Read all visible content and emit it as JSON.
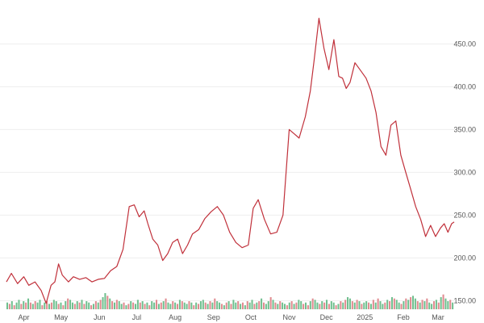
{
  "chart_data": {
    "type": "line",
    "title": "",
    "xlabel": "",
    "ylabel": "",
    "ylim": [
      140,
      490
    ],
    "y_ticks": [
      "150.00",
      "200.00",
      "250.00",
      "300.00",
      "350.00",
      "400.00",
      "450.00"
    ],
    "y_tick_values": [
      150,
      200,
      250,
      300,
      350,
      400,
      450
    ],
    "x_ticks": [
      "Apr",
      "May",
      "Jun",
      "Jul",
      "Aug",
      "Sep",
      "Oct",
      "Nov",
      "Dec",
      "2025",
      "Feb",
      "Mar"
    ],
    "x_tick_dates": [
      "2024-04-01",
      "2024-05-01",
      "2024-06-01",
      "2024-07-01",
      "2024-08-01",
      "2024-09-01",
      "2024-10-01",
      "2024-11-01",
      "2024-12-01",
      "2025-01-01",
      "2025-02-01",
      "2025-03-01"
    ],
    "x_range": [
      "2024-03-18",
      "2025-03-14"
    ],
    "grid": true,
    "legend": "none",
    "colors": {
      "line": "#c0303a",
      "volume_up": "#6fbf8e",
      "volume_down": "#e08a8f",
      "grid": "#eeeeee"
    },
    "series": [
      {
        "type": "line",
        "x": [
          "2024-03-18",
          "2024-03-22",
          "2024-03-27",
          "2024-04-01",
          "2024-04-05",
          "2024-04-10",
          "2024-04-15",
          "2024-04-19",
          "2024-04-23",
          "2024-04-26",
          "2024-04-29",
          "2024-05-02",
          "2024-05-07",
          "2024-05-11",
          "2024-05-16",
          "2024-05-21",
          "2024-05-26",
          "2024-05-31",
          "2024-06-05",
          "2024-06-10",
          "2024-06-15",
          "2024-06-20",
          "2024-06-25",
          "2024-06-29",
          "2024-07-03",
          "2024-07-07",
          "2024-07-10",
          "2024-07-14",
          "2024-07-18",
          "2024-07-22",
          "2024-07-26",
          "2024-07-30",
          "2024-08-03",
          "2024-08-07",
          "2024-08-11",
          "2024-08-15",
          "2024-08-20",
          "2024-08-25",
          "2024-08-30",
          "2024-09-04",
          "2024-09-09",
          "2024-09-14",
          "2024-09-19",
          "2024-09-24",
          "2024-09-29",
          "2024-10-03",
          "2024-10-07",
          "2024-10-12",
          "2024-10-17",
          "2024-10-22",
          "2024-10-27",
          "2024-11-01",
          "2024-11-05",
          "2024-11-09",
          "2024-11-14",
          "2024-11-18",
          "2024-11-21",
          "2024-11-25",
          "2024-11-29",
          "2024-12-03",
          "2024-12-07",
          "2024-12-11",
          "2024-12-14",
          "2024-12-17",
          "2024-12-20",
          "2024-12-24",
          "2024-12-28",
          "2025-01-02",
          "2025-01-06",
          "2025-01-10",
          "2025-01-14",
          "2025-01-18",
          "2025-01-22",
          "2025-01-26",
          "2025-01-30",
          "2025-02-03",
          "2025-02-07",
          "2025-02-11",
          "2025-02-15",
          "2025-02-19",
          "2025-02-23",
          "2025-02-27",
          "2025-03-03",
          "2025-03-06",
          "2025-03-09",
          "2025-03-12",
          "2025-03-14"
        ],
        "values": [
          172,
          182,
          170,
          178,
          168,
          172,
          162,
          147,
          168,
          172,
          193,
          180,
          172,
          178,
          175,
          177,
          172,
          175,
          176,
          185,
          190,
          210,
          260,
          262,
          248,
          255,
          240,
          222,
          215,
          197,
          205,
          218,
          222,
          205,
          215,
          228,
          233,
          246,
          254,
          260,
          250,
          230,
          218,
          212,
          215,
          258,
          268,
          245,
          228,
          230,
          250,
          350,
          345,
          340,
          365,
          395,
          430,
          480,
          445,
          420,
          455,
          412,
          410,
          398,
          405,
          428,
          420,
          410,
          395,
          370,
          330,
          320,
          355,
          360,
          320,
          300,
          280,
          260,
          245,
          225,
          238,
          225,
          235,
          240,
          230,
          240,
          242
        ]
      }
    ],
    "volume": {
      "x_range": [
        "2024-03-18",
        "2025-03-14"
      ],
      "values": [
        5,
        4,
        6,
        3,
        5,
        7,
        4,
        6,
        5,
        8,
        5,
        4,
        6,
        5,
        7,
        3,
        5,
        6,
        4,
        5,
        7,
        6,
        4,
        5,
        3,
        6,
        8,
        7,
        5,
        4,
        6,
        5,
        7,
        4,
        6,
        5,
        3,
        4,
        6,
        5,
        7,
        9,
        12,
        10,
        8,
        6,
        5,
        7,
        6,
        4,
        5,
        3,
        4,
        6,
        5,
        4,
        7,
        5,
        6,
        4,
        5,
        3,
        6,
        5,
        7,
        4,
        5,
        6,
        8,
        5,
        4,
        6,
        5,
        4,
        7,
        6,
        5,
        4,
        6,
        5,
        3,
        5,
        4,
        6,
        7,
        5,
        4,
        6,
        5,
        8,
        6,
        5,
        4,
        3,
        5,
        6,
        4,
        7,
        5,
        6,
        4,
        5,
        3,
        6,
        5,
        7,
        4,
        5,
        6,
        8,
        5,
        4,
        6,
        9,
        7,
        5,
        4,
        6,
        5,
        4,
        3,
        5,
        6,
        4,
        5,
        7,
        6,
        4,
        5,
        3,
        6,
        8,
        7,
        5,
        4,
        6,
        5,
        7,
        4,
        6,
        5,
        3,
        4,
        6,
        5,
        7,
        9,
        8,
        6,
        5,
        7,
        6,
        4,
        5,
        6,
        5,
        4,
        7,
        5,
        8,
        6,
        4,
        5,
        7,
        6,
        9,
        8,
        7,
        5,
        4,
        6,
        8,
        7,
        9,
        10,
        8,
        6,
        5,
        7,
        6,
        8,
        5,
        4,
        6,
        7,
        5,
        9,
        11,
        8,
        6,
        7,
        5
      ],
      "directions": [
        1,
        0,
        1,
        0,
        1,
        1,
        0,
        1,
        0,
        1,
        0,
        1,
        0,
        1,
        1,
        0,
        1,
        0,
        1,
        0,
        1,
        1,
        0,
        1,
        0,
        1,
        0,
        1,
        1,
        0,
        1,
        0,
        1,
        0,
        1,
        1,
        0,
        1,
        0,
        1,
        0,
        1,
        1,
        0,
        1,
        0,
        1,
        0,
        1,
        1,
        0,
        1,
        0,
        1,
        0,
        1,
        1,
        0,
        1,
        0,
        1,
        0,
        1,
        1,
        0,
        1,
        0,
        1,
        0,
        1,
        1,
        0,
        1,
        0,
        1,
        0,
        1,
        1,
        0,
        1,
        0,
        1,
        0,
        1,
        1,
        0,
        1,
        0,
        1,
        0,
        1,
        1,
        0,
        1,
        0,
        1,
        0,
        1,
        1,
        0,
        1,
        0,
        1,
        0,
        1,
        1,
        0,
        1,
        0,
        1,
        0,
        1,
        1,
        0,
        1,
        0,
        1,
        0,
        1,
        1,
        0,
        1,
        0,
        1,
        0,
        1,
        1,
        0,
        1,
        0,
        1,
        0,
        1,
        1,
        0,
        1,
        0,
        1,
        0,
        1,
        1,
        0,
        1,
        0,
        1,
        0,
        1,
        1,
        0,
        1,
        0,
        1,
        0,
        1,
        1,
        0,
        1,
        0,
        1,
        0,
        1,
        1,
        0,
        1,
        0,
        1,
        0,
        1,
        1,
        0,
        1,
        0,
        1,
        0,
        1,
        1,
        0,
        1,
        0,
        1,
        0,
        1,
        1,
        0,
        1,
        0,
        1,
        0,
        1,
        1,
        0,
        1,
        0
      ]
    }
  }
}
